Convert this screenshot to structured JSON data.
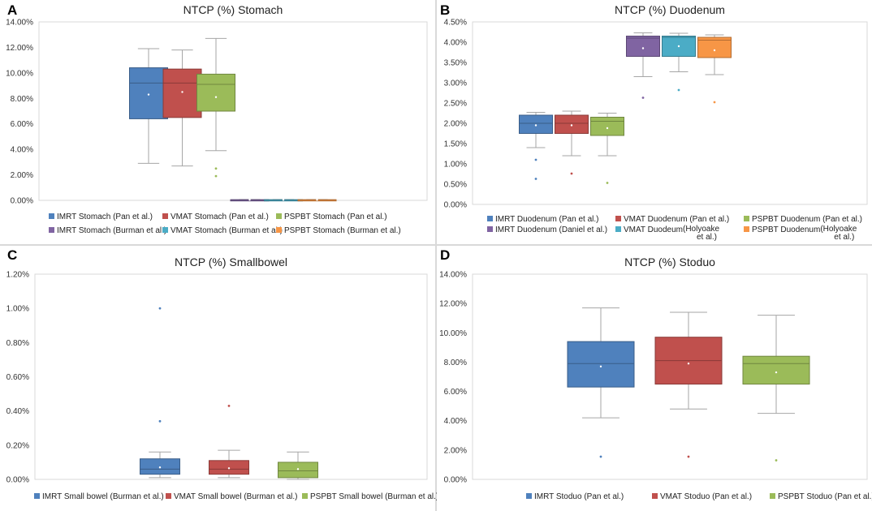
{
  "chart_data": [
    {
      "panel": "A",
      "type": "boxplot",
      "title": "NTCP (%)  Stomach",
      "ylim": [
        0,
        14
      ],
      "yticks": [
        0,
        2,
        4,
        6,
        8,
        10,
        12,
        14
      ],
      "ytick_labels": [
        "0.00%",
        "2.00%",
        "4.00%",
        "6.00%",
        "8.00%",
        "10.00%",
        "12.00%",
        "14.00%"
      ],
      "series": [
        {
          "name": "IMRT Stomach (Pan et al.)",
          "color": "#4f81bd",
          "min": 2.9,
          "q1": 6.4,
          "median": 9.2,
          "q3": 10.4,
          "max": 11.9,
          "mean": 8.3,
          "outliers": []
        },
        {
          "name": "VMAT Stomach (Pan et al.)",
          "color": "#c0504d",
          "min": 2.7,
          "q1": 6.5,
          "median": 9.2,
          "q3": 10.3,
          "max": 11.8,
          "mean": 8.5,
          "outliers": []
        },
        {
          "name": "PSPBT Stomach (Pan et al.)",
          "color": "#9bbb59",
          "min": 3.9,
          "q1": 7.0,
          "median": 9.1,
          "q3": 9.9,
          "max": 12.7,
          "mean": 8.1,
          "outliers": [
            2.5,
            1.9
          ]
        },
        {
          "name": "IMRT Stomach (Burman et al.)",
          "color": "#8064a2",
          "min": 0.02,
          "q1": 0.03,
          "median": 0.04,
          "q3": 0.05,
          "max": 0.06,
          "mean": 0.04,
          "outliers": []
        },
        {
          "name": "VMAT Stomach (Burman et al.)",
          "color": "#4bacc6",
          "min": 0.02,
          "q1": 0.03,
          "median": 0.04,
          "q3": 0.05,
          "max": 0.06,
          "mean": 0.04,
          "outliers": []
        },
        {
          "name": "PSPBT Stomach (Burman et al.)",
          "color": "#f79646",
          "min": 0.02,
          "q1": 0.03,
          "median": 0.04,
          "q3": 0.05,
          "max": 0.06,
          "mean": 0.04,
          "outliers": []
        }
      ]
    },
    {
      "panel": "B",
      "type": "boxplot",
      "title": "NTCP (%) Duodenum",
      "ylim": [
        0,
        4.5
      ],
      "yticks": [
        0,
        0.5,
        1,
        1.5,
        2,
        2.5,
        3,
        3.5,
        4,
        4.5
      ],
      "ytick_labels": [
        "0.00%",
        "0.50%",
        "1.00%",
        "1.50%",
        "2.00%",
        "2.50%",
        "3.00%",
        "3.50%",
        "4.00%",
        "4.50%"
      ],
      "series": [
        {
          "name": "IMRT Duodenum (Pan et al.)",
          "color": "#4f81bd",
          "min": 1.4,
          "q1": 1.75,
          "median": 2.0,
          "q3": 2.2,
          "max": 2.27,
          "mean": 1.95,
          "outliers": [
            1.1,
            0.63
          ]
        },
        {
          "name": "VMAT Duodenum (Pan et al.)",
          "color": "#c0504d",
          "min": 1.2,
          "q1": 1.75,
          "median": 2.0,
          "q3": 2.2,
          "max": 2.3,
          "mean": 1.95,
          "outliers": [
            0.76
          ]
        },
        {
          "name": "PSPBT Duodenum (Pan et al.)",
          "color": "#9bbb59",
          "min": 1.2,
          "q1": 1.7,
          "median": 2.05,
          "q3": 2.15,
          "max": 2.25,
          "mean": 1.88,
          "outliers": [
            0.53
          ]
        },
        {
          "name": "IMRT Duodenum (Daniel et al.)",
          "color": "#8064a2",
          "min": 3.15,
          "q1": 3.65,
          "median": 4.1,
          "q3": 4.15,
          "max": 4.23,
          "mean": 3.85,
          "outliers": [
            2.63
          ]
        },
        {
          "name": "VMAT Duodeum",
          "note": "(Holyoake et al.)",
          "color": "#4bacc6",
          "min": 3.27,
          "q1": 3.65,
          "median": 4.12,
          "q3": 4.15,
          "max": 4.22,
          "mean": 3.9,
          "outliers": [
            2.82
          ]
        },
        {
          "name": "PSPBT Duodenum",
          "note": "(Holyoake et al.)",
          "color": "#f79646",
          "min": 3.2,
          "q1": 3.62,
          "median": 4.05,
          "q3": 4.12,
          "max": 4.18,
          "mean": 3.8,
          "outliers": [
            2.52
          ]
        }
      ]
    },
    {
      "panel": "C",
      "type": "boxplot",
      "title": "NTCP (%) Smallbowel",
      "ylim": [
        0,
        1.2
      ],
      "yticks": [
        0,
        0.2,
        0.4,
        0.6,
        0.8,
        1.0,
        1.2
      ],
      "ytick_labels": [
        "0.00%",
        "0.20%",
        "0.40%",
        "0.60%",
        "0.80%",
        "1.00%",
        "1.20%"
      ],
      "series": [
        {
          "name": "IMRT Small bowel (Burman et al.)",
          "color": "#4f81bd",
          "min": 0.01,
          "q1": 0.03,
          "median": 0.06,
          "q3": 0.12,
          "max": 0.16,
          "mean": 0.07,
          "outliers": [
            0.34,
            1.0
          ]
        },
        {
          "name": "VMAT Small bowel (Burman et al.)",
          "color": "#c0504d",
          "min": 0.01,
          "q1": 0.03,
          "median": 0.06,
          "q3": 0.11,
          "max": 0.17,
          "mean": 0.065,
          "outliers": [
            0.43
          ]
        },
        {
          "name": "PSPBT Small bowel (Burman et al.)",
          "color": "#9bbb59",
          "min": 0.0,
          "q1": 0.01,
          "median": 0.05,
          "q3": 0.1,
          "max": 0.16,
          "mean": 0.06,
          "outliers": []
        }
      ]
    },
    {
      "panel": "D",
      "type": "boxplot",
      "title": "NTCP (%) Stoduo",
      "ylim": [
        0,
        14
      ],
      "yticks": [
        0,
        2,
        4,
        6,
        8,
        10,
        12,
        14
      ],
      "ytick_labels": [
        "0.00%",
        "2.00%",
        "4.00%",
        "6.00%",
        "8.00%",
        "10.00%",
        "12.00%",
        "14.00%"
      ],
      "series": [
        {
          "name": "IMRT Stoduo (Pan et al.)",
          "color": "#4f81bd",
          "min": 4.2,
          "q1": 6.3,
          "median": 7.9,
          "q3": 9.4,
          "max": 11.7,
          "mean": 7.7,
          "outliers": [
            1.55
          ]
        },
        {
          "name": "VMAT Stoduo (Pan et al.)",
          "color": "#c0504d",
          "min": 4.8,
          "q1": 6.5,
          "median": 8.1,
          "q3": 9.7,
          "max": 11.4,
          "mean": 7.9,
          "outliers": [
            1.55
          ]
        },
        {
          "name": "PSPBT Stoduo (Pan et al.)",
          "color": "#9bbb59",
          "min": 4.5,
          "q1": 6.5,
          "median": 7.9,
          "q3": 8.4,
          "max": 11.2,
          "mean": 7.3,
          "outliers": [
            1.3
          ]
        }
      ]
    }
  ]
}
